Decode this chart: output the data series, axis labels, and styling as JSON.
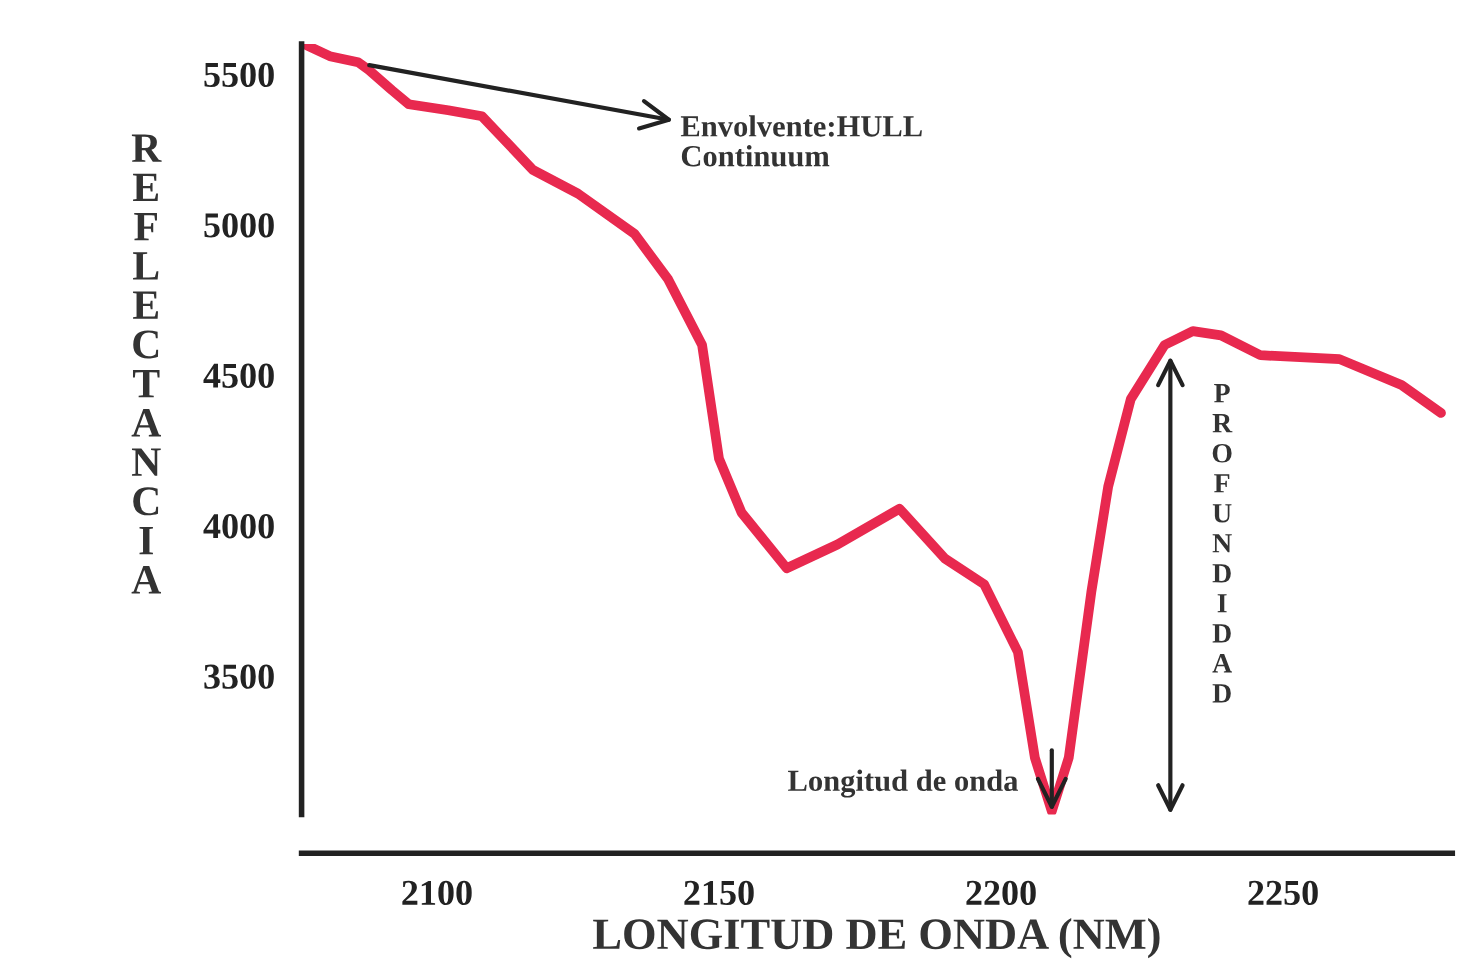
{
  "chart_data": {
    "type": "line",
    "xlabel": "LONGITUD DE ONDA (NM)",
    "ylabel": "REFLECTANCIA",
    "x": [
      2077,
      2081,
      2086,
      2088,
      2092,
      2095,
      2102,
      2108,
      2117,
      2125,
      2135,
      2141,
      2147,
      2150,
      2154,
      2162,
      2171,
      2182,
      2190,
      2197,
      2203,
      2206,
      2209,
      2212,
      2216,
      2219,
      2223,
      2229,
      2234,
      2239,
      2246,
      2260,
      2271,
      2278
    ],
    "series": [
      {
        "color": "#e8294f",
        "values": [
          5595,
          5560,
          5540,
          5513,
          5447,
          5400,
          5380,
          5360,
          5182,
          5103,
          4970,
          4818,
          4600,
          4222,
          4043,
          3858,
          3937,
          4056,
          3891,
          3805,
          3579,
          3228,
          3050,
          3228,
          3778,
          4130,
          4420,
          4600,
          4646,
          4632,
          4566,
          4553,
          4467,
          4374
        ]
      }
    ],
    "xlim": [
      2076,
      2280
    ],
    "ylim": [
      3040,
      5600
    ],
    "xticks": [
      2100,
      2150,
      2200,
      2250
    ],
    "yticks": [
      3500,
      4000,
      4500,
      5000,
      5500
    ],
    "grid": false,
    "legend": false,
    "marker": "none",
    "line_style": "solid",
    "annotations": [
      {
        "text": "Envolvente:HULL\nContinuum",
        "x": 2088,
        "y": 5530
      },
      {
        "text": "Longitud de onda",
        "x": 2209,
        "y": 3050
      },
      "PROFUNDIDAD"
    ]
  }
}
